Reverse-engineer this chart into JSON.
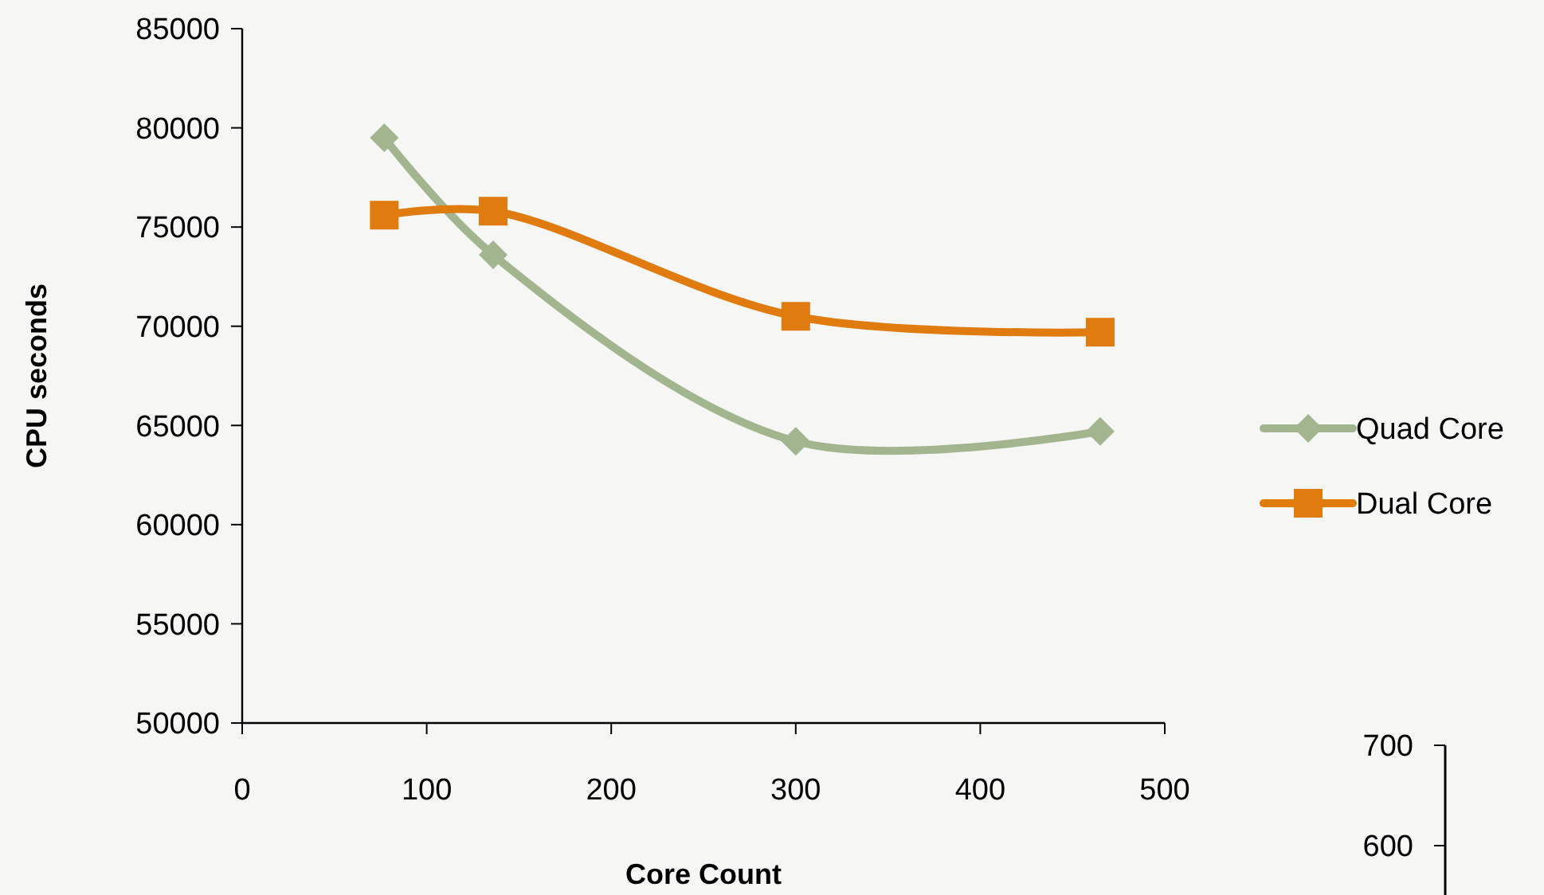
{
  "chart_data": {
    "type": "line",
    "xlabel": "Core Count",
    "ylabel": "CPU seconds",
    "x": [
      77,
      136,
      300,
      465
    ],
    "series": [
      {
        "name": "Quad Core",
        "color": "#a2b58f",
        "values": [
          79500,
          73600,
          64200,
          64700
        ],
        "marker": "diamond"
      },
      {
        "name": "Dual Core",
        "color": "#e07b10",
        "values": [
          75600,
          75800,
          70500,
          69700
        ],
        "marker": "square"
      }
    ],
    "xlim": [
      0,
      500
    ],
    "xticks": [
      0,
      100,
      200,
      300,
      400,
      500
    ],
    "ylim": [
      50000,
      85000
    ],
    "yticks": [
      50000,
      55000,
      60000,
      65000,
      70000,
      75000,
      80000,
      85000
    ],
    "grid": false,
    "legend": "right",
    "annotations": [
      "700",
      "600"
    ]
  }
}
